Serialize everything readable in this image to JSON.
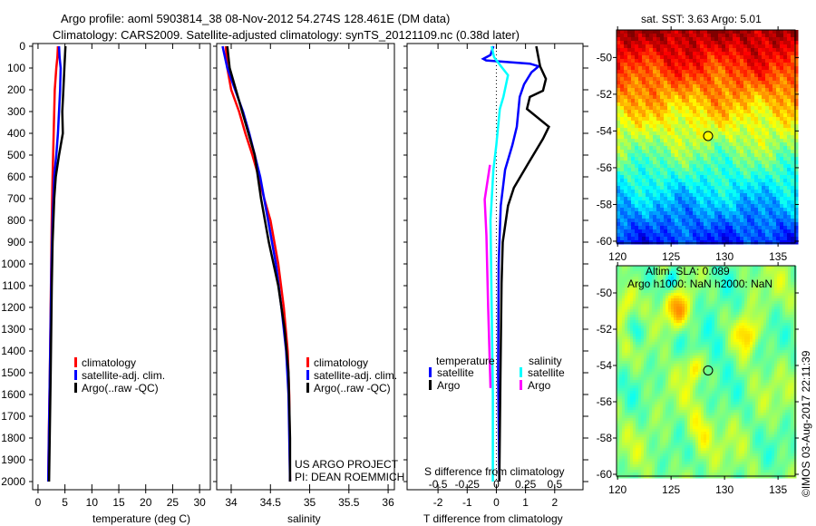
{
  "title_line1": "Argo profile: aoml 5903814_38 08-Nov-2012 54.274S 128.461E (DM data)",
  "title_line2": "Climatology: CARS2009. Satellite-adjusted climatology: synTS_20121109.nc (0.38d later)",
  "colors": {
    "climatology": "#ff0000",
    "satellite": "#0000ff",
    "argo": "#000000",
    "sal_satellite": "#00ffff",
    "sal_argo": "#ff00ff"
  },
  "chart_data": [
    {
      "type": "line",
      "name": "temperature",
      "xlabel": "temperature (deg C)",
      "ylabel": "",
      "xlim": [
        -1.0,
        32.0
      ],
      "ylim": [
        0,
        2040
      ],
      "yreversed": true,
      "xticks": [
        0,
        5,
        10,
        15,
        20,
        25,
        30
      ],
      "xticklabels": [
        "0",
        "5",
        "10",
        "15",
        "20",
        "25",
        "30"
      ],
      "yticks": [
        0,
        100,
        200,
        300,
        400,
        500,
        600,
        700,
        800,
        900,
        1000,
        1100,
        1200,
        1300,
        1400,
        1500,
        1600,
        1700,
        1800,
        1900,
        2000
      ],
      "yticklabels": [
        "0",
        "100",
        "200",
        "300",
        "400",
        "500",
        "600",
        "700",
        "800",
        "900",
        "1000",
        "1100",
        "1200",
        "1300",
        "1400",
        "1500",
        "1600",
        "1700",
        "1800",
        "1900",
        "2000"
      ],
      "legend": [
        "climatology",
        "satellite-adj. clim.",
        "Argo(..raw -QC)"
      ],
      "legend_placement": "lower-left",
      "series": [
        {
          "name": "climatology",
          "color": "#ff0000",
          "points": [
            [
              0,
              3.7
            ],
            [
              50,
              3.6
            ],
            [
              100,
              3.4
            ],
            [
              200,
              3.1
            ],
            [
              300,
              3.0
            ],
            [
              400,
              2.9
            ],
            [
              500,
              2.8
            ],
            [
              600,
              2.7
            ],
            [
              800,
              2.55
            ],
            [
              1000,
              2.45
            ],
            [
              1200,
              2.35
            ],
            [
              1500,
              2.2
            ],
            [
              1800,
              2.0
            ],
            [
              2000,
              1.9
            ]
          ]
        },
        {
          "name": "satellite-adj. clim.",
          "color": "#0000ff",
          "points": [
            [
              0,
              3.9
            ],
            [
              50,
              4.0
            ],
            [
              100,
              4.2
            ],
            [
              200,
              4.1
            ],
            [
              400,
              3.7
            ],
            [
              500,
              3.4
            ],
            [
              600,
              3.0
            ],
            [
              800,
              2.7
            ],
            [
              1000,
              2.5
            ],
            [
              1500,
              2.2
            ],
            [
              2000,
              1.9
            ]
          ]
        },
        {
          "name": "Argo(..raw -QC)",
          "color": "#000000",
          "points": [
            [
              0,
              5.1
            ],
            [
              50,
              5.0
            ],
            [
              100,
              4.9
            ],
            [
              200,
              4.7
            ],
            [
              300,
              4.5
            ],
            [
              400,
              4.6
            ],
            [
              500,
              3.9
            ],
            [
              600,
              3.3
            ],
            [
              700,
              3.0
            ],
            [
              900,
              2.7
            ],
            [
              1100,
              2.55
            ],
            [
              1500,
              2.35
            ],
            [
              2000,
              2.05
            ]
          ]
        }
      ]
    },
    {
      "type": "line",
      "name": "salinity",
      "xlabel": "salinity",
      "xlim": [
        33.815,
        36.08
      ],
      "ylim": [
        0,
        2040
      ],
      "yreversed": true,
      "xticks": [
        34,
        34.5,
        35,
        35.5,
        36
      ],
      "xticklabels": [
        "34",
        "34.5",
        "35",
        "35.5",
        "36"
      ],
      "yticks": [
        0,
        100,
        200,
        300,
        400,
        500,
        600,
        700,
        800,
        900,
        1000,
        1100,
        1200,
        1300,
        1400,
        1500,
        1600,
        1700,
        1800,
        1900,
        2000
      ],
      "legend": [
        "climatology",
        "satellite-adj. clim.",
        "Argo(..raw -QC)"
      ],
      "legend_placement": "lower-center",
      "annotations": [
        "US ARGO PROJECT",
        "PI: DEAN ROEMMICH"
      ],
      "series": [
        {
          "name": "climatology",
          "color": "#ff0000",
          "points": [
            [
              0,
              33.93
            ],
            [
              100,
              33.95
            ],
            [
              200,
              34.0
            ],
            [
              300,
              34.1
            ],
            [
              400,
              34.18
            ],
            [
              500,
              34.27
            ],
            [
              600,
              34.35
            ],
            [
              700,
              34.42
            ],
            [
              800,
              34.5
            ],
            [
              900,
              34.55
            ],
            [
              1000,
              34.6
            ],
            [
              1200,
              34.67
            ],
            [
              1400,
              34.72
            ],
            [
              1600,
              34.74
            ],
            [
              2000,
              34.75
            ]
          ]
        },
        {
          "name": "satellite-adj. clim.",
          "color": "#0000ff",
          "points": [
            [
              0,
              33.89
            ],
            [
              100,
              33.95
            ],
            [
              200,
              34.05
            ],
            [
              300,
              34.15
            ],
            [
              400,
              34.23
            ],
            [
              500,
              34.3
            ],
            [
              600,
              34.37
            ],
            [
              800,
              34.47
            ],
            [
              1000,
              34.57
            ],
            [
              1200,
              34.64
            ],
            [
              1400,
              34.7
            ],
            [
              1600,
              34.73
            ],
            [
              2000,
              34.75
            ]
          ]
        },
        {
          "name": "Argo(..raw -QC)",
          "color": "#000000",
          "points": [
            [
              0,
              33.95
            ],
            [
              100,
              33.98
            ],
            [
              200,
              34.06
            ],
            [
              300,
              34.14
            ],
            [
              400,
              34.22
            ],
            [
              500,
              34.3
            ],
            [
              550,
              34.32
            ],
            [
              700,
              34.38
            ],
            [
              900,
              34.48
            ],
            [
              1100,
              34.6
            ],
            [
              1300,
              34.68
            ],
            [
              1500,
              34.73
            ],
            [
              1800,
              34.75
            ],
            [
              2000,
              34.75
            ]
          ]
        }
      ]
    },
    {
      "type": "line",
      "name": "difference",
      "xlabel": "T difference from climatology",
      "x2label": "S difference from climatology",
      "xlim": [
        -3.06,
        2.97
      ],
      "x2lim": [
        -0.765,
        0.7425
      ],
      "ylim": [
        0,
        2040
      ],
      "yreversed": true,
      "xticks": [
        -2,
        -1,
        0,
        1,
        2
      ],
      "xticklabels": [
        "-2",
        "-1",
        "0",
        "1",
        "2"
      ],
      "x2ticks": [
        -0.5,
        -0.25,
        0,
        0.25,
        0.5
      ],
      "x2ticklabels": [
        "-0.5",
        "-0.25",
        "0",
        "0.25",
        "0.5"
      ],
      "yticks": [
        0,
        100,
        200,
        300,
        400,
        500,
        600,
        700,
        800,
        900,
        1000,
        1100,
        1200,
        1300,
        1400,
        1500,
        1600,
        1700,
        1800,
        1900,
        2000
      ],
      "legend_headers": [
        "temperature",
        "salinity"
      ],
      "legend": [
        "satellite",
        "Argo",
        "satellite",
        "Argo"
      ],
      "legend_placement": "lower-center",
      "series": [
        {
          "name": "T satellite",
          "axis": "T",
          "color": "#0000ff",
          "points": [
            [
              0,
              -0.1
            ],
            [
              40,
              -0.2
            ],
            [
              58,
              -0.45
            ],
            [
              65,
              -0.35
            ],
            [
              80,
              1.15
            ],
            [
              92,
              1.45
            ],
            [
              120,
              1.2
            ],
            [
              175,
              0.95
            ],
            [
              233,
              0.8
            ],
            [
              370,
              0.7
            ],
            [
              454,
              0.55
            ],
            [
              567,
              0.3
            ],
            [
              733,
              0.15
            ],
            [
              1000,
              0.08
            ],
            [
              1500,
              0.06
            ],
            [
              2000,
              0.1
            ]
          ]
        },
        {
          "name": "T Argo",
          "axis": "T",
          "color": "#000000",
          "points": [
            [
              0,
              1.37
            ],
            [
              92,
              1.5
            ],
            [
              150,
              1.7
            ],
            [
              204,
              1.6
            ],
            [
              233,
              1.15
            ],
            [
              288,
              1.05
            ],
            [
              370,
              1.8
            ],
            [
              425,
              1.6
            ],
            [
              537,
              1.1
            ],
            [
              650,
              0.6
            ],
            [
              733,
              0.4
            ],
            [
              900,
              0.22
            ],
            [
              1090,
              0.18
            ],
            [
              1500,
              0.14
            ],
            [
              2000,
              0.1
            ]
          ]
        },
        {
          "name": "S satellite",
          "axis": "S",
          "color": "#00ffff",
          "points": [
            [
              0,
              -0.04
            ],
            [
              50,
              -0.02
            ],
            [
              92,
              0.04
            ],
            [
              133,
              0.1
            ],
            [
              233,
              0.06
            ],
            [
              288,
              0.03
            ],
            [
              454,
              0.0
            ],
            [
              567,
              -0.025
            ],
            [
              800,
              -0.05
            ],
            [
              1200,
              -0.04
            ],
            [
              1600,
              -0.03
            ],
            [
              2000,
              -0.03
            ]
          ]
        },
        {
          "name": "S Argo",
          "axis": "S",
          "color": "#ff00ff",
          "points": [
            [
              545,
              -0.055
            ],
            [
              704,
              -0.1
            ],
            [
              870,
              -0.085
            ],
            [
              1200,
              -0.07
            ],
            [
              1570,
              -0.05
            ]
          ]
        }
      ]
    },
    {
      "type": "heatmap",
      "name": "sst-map",
      "title": "sat. SST: 3.63 Argo: 5.01",
      "xlim": [
        119.9,
        136.6
      ],
      "ylim": [
        -60.1,
        -48.5
      ],
      "xticks": [
        120,
        125,
        130,
        135
      ],
      "xticklabels": [
        "120",
        "125",
        "130",
        "135"
      ],
      "yticks": [
        -50,
        -52,
        -54,
        -56,
        -58,
        -60
      ],
      "yticklabels": [
        "-50",
        "-52",
        "-54",
        "-56",
        "-58",
        "-60"
      ],
      "marker": {
        "lon": 128.461,
        "lat": -54.274,
        "filled": true
      }
    },
    {
      "type": "heatmap",
      "name": "sla-map",
      "title": "Altim. SLA: 0.089",
      "subtitle": "Argo h1000: NaN h2000: NaN",
      "xlim": [
        119.9,
        136.6
      ],
      "ylim": [
        -60.1,
        -48.5
      ],
      "xticks": [
        120,
        125,
        130,
        135
      ],
      "xticklabels": [
        "120",
        "125",
        "130",
        "135"
      ],
      "yticks": [
        -50,
        -52,
        -54,
        -56,
        -58,
        -60
      ],
      "yticklabels": [
        "-50",
        "-52",
        "-54",
        "-56",
        "-58",
        "-60"
      ],
      "marker": {
        "lon": 128.461,
        "lat": -54.274,
        "filled": false
      }
    }
  ],
  "credit": "©IMOS 03-Aug-2017 22:11:39"
}
